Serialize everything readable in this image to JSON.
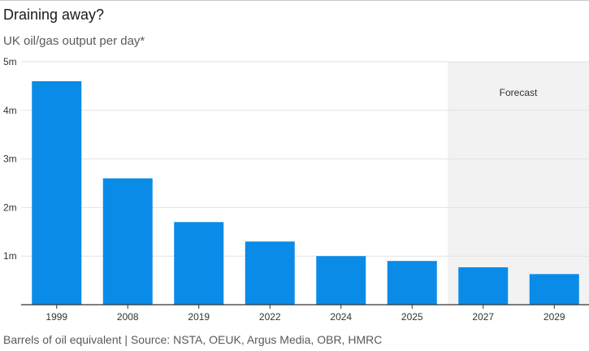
{
  "title": "Draining away?",
  "subtitle": "UK oil/gas output per day*",
  "footer": "Barrels of oil equivalent | Source: NSTA, OEUK, Argus Media, OBR, HMRC",
  "colors": {
    "bar": "#0a8be8",
    "forecast_shade": "#f2f2f2",
    "grid": "#e2e2e2",
    "axis": "#333333"
  },
  "chart_data": {
    "type": "bar",
    "categories": [
      "1999",
      "2008",
      "2019",
      "2022",
      "2024",
      "2025",
      "2027",
      "2029"
    ],
    "values": [
      4.6,
      2.6,
      1.7,
      1.3,
      1.0,
      0.9,
      0.77,
      0.63
    ],
    "value_unit": "m",
    "ylim": [
      0,
      5
    ],
    "yticks": [
      {
        "value": 1,
        "label": "1m"
      },
      {
        "value": 2,
        "label": "2m"
      },
      {
        "value": 3,
        "label": "3m"
      },
      {
        "value": 4,
        "label": "4m"
      },
      {
        "value": 5,
        "label": "5m"
      }
    ],
    "forecast": {
      "label": "Forecast",
      "from_category": "2027",
      "to_category": "2029"
    },
    "grid": true
  }
}
